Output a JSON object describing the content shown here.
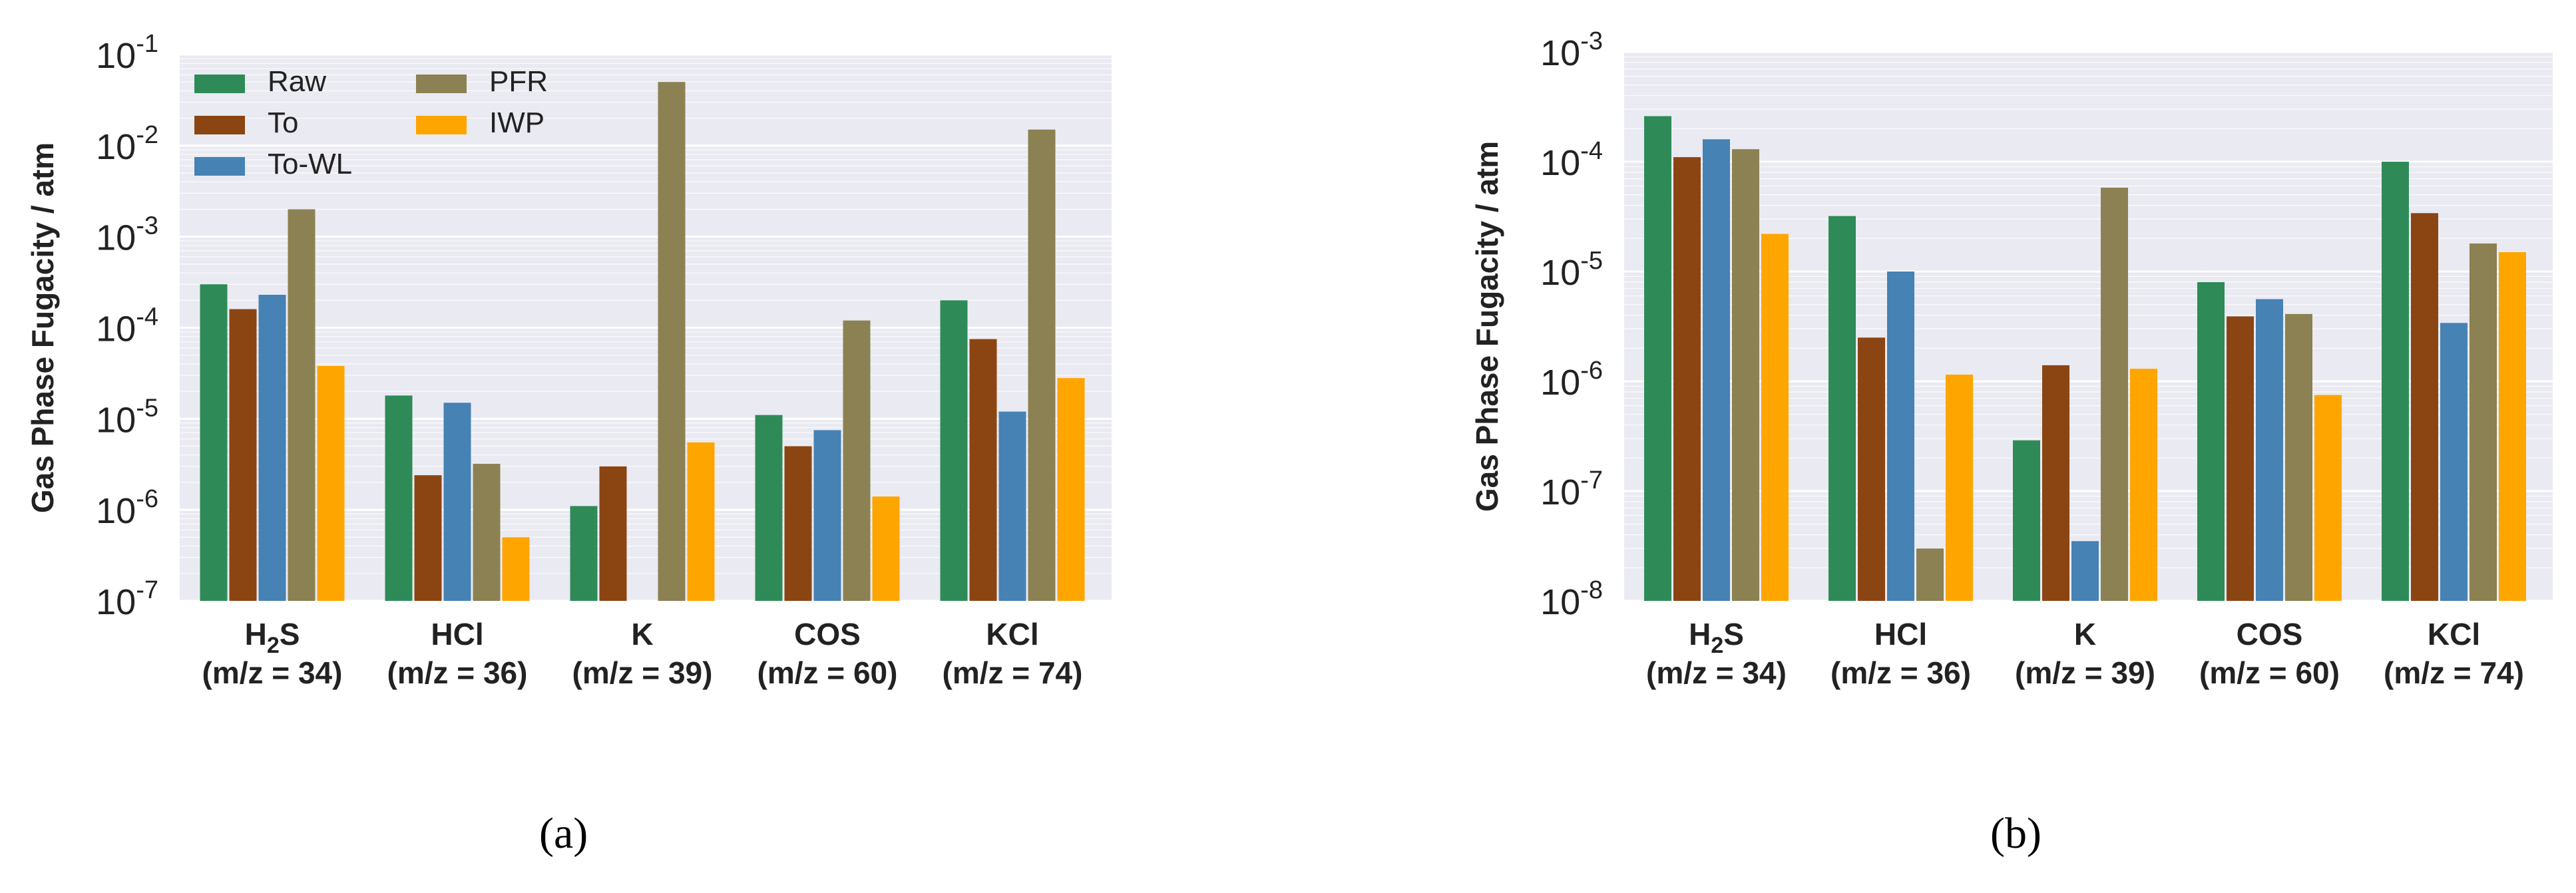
{
  "colors": {
    "Raw": "#2e8b57",
    "To": "#8b4513",
    "To-WL": "#4682b4",
    "PFR": "#8b8152",
    "IWP": "#ffa500",
    "plot_bg": "#eaeaf2",
    "grid": "#ffffff"
  },
  "captions": {
    "a": "(a)",
    "b": "(b)"
  },
  "chart_data": [
    {
      "type": "bar",
      "id": "a",
      "yscale": "log",
      "ylabel": "Gas Phase Fugacity / atm",
      "ylim": [
        1e-07,
        0.1
      ],
      "ytick_exponents": [
        "-7",
        "-6",
        "-5",
        "-4",
        "-3",
        "-2",
        "-1"
      ],
      "ytick_base": "10",
      "legend": {
        "position": "top-left",
        "columns": 2
      },
      "categories": [
        {
          "name_main": "H",
          "name_sub": "2",
          "name_rest": "S",
          "mz": "(m/z = 34)"
        },
        {
          "name_main": "HCl",
          "name_sub": "",
          "name_rest": "",
          "mz": "(m/z = 36)"
        },
        {
          "name_main": "K",
          "name_sub": "",
          "name_rest": "",
          "mz": "(m/z = 39)"
        },
        {
          "name_main": "COS",
          "name_sub": "",
          "name_rest": "",
          "mz": "(m/z = 60)"
        },
        {
          "name_main": "KCl",
          "name_sub": "",
          "name_rest": "",
          "mz": "(m/z = 74)"
        }
      ],
      "series": [
        {
          "name": "Raw",
          "values": [
            0.0003,
            1.8e-05,
            1.1e-06,
            1.1e-05,
            0.0002
          ]
        },
        {
          "name": "To",
          "values": [
            0.00016,
            2.4e-06,
            3e-06,
            5e-06,
            7.5e-05
          ]
        },
        {
          "name": "To-WL",
          "values": [
            0.00023,
            1.5e-05,
            null,
            7.5e-06,
            1.2e-05
          ]
        },
        {
          "name": "PFR",
          "values": [
            0.002,
            3.2e-06,
            0.05,
            0.00012,
            0.015
          ]
        },
        {
          "name": "IWP",
          "values": [
            3.8e-05,
            5e-07,
            5.5e-06,
            1.4e-06,
            2.8e-05
          ]
        }
      ]
    },
    {
      "type": "bar",
      "id": "b",
      "yscale": "log",
      "ylabel": "Gas Phase Fugacity / atm",
      "ylim": [
        1e-08,
        0.001
      ],
      "ytick_exponents": [
        "-8",
        "-7",
        "-6",
        "-5",
        "-4",
        "-3"
      ],
      "ytick_base": "10",
      "categories": [
        {
          "name_main": "H",
          "name_sub": "2",
          "name_rest": "S",
          "mz": "(m/z = 34)"
        },
        {
          "name_main": "HCl",
          "name_sub": "",
          "name_rest": "",
          "mz": "(m/z = 36)"
        },
        {
          "name_main": "K",
          "name_sub": "",
          "name_rest": "",
          "mz": "(m/z = 39)"
        },
        {
          "name_main": "COS",
          "name_sub": "",
          "name_rest": "",
          "mz": "(m/z = 60)"
        },
        {
          "name_main": "KCl",
          "name_sub": "",
          "name_rest": "",
          "mz": "(m/z = 74)"
        }
      ],
      "series": [
        {
          "name": "Raw",
          "values": [
            0.00026,
            3.2e-05,
            2.9e-07,
            8e-06,
            0.0001
          ]
        },
        {
          "name": "To",
          "values": [
            0.00011,
            2.5e-06,
            1.4e-06,
            3.9e-06,
            3.4e-05
          ]
        },
        {
          "name": "To-WL",
          "values": [
            0.00016,
            1e-05,
            3.5e-08,
            5.6e-06,
            3.4e-06
          ]
        },
        {
          "name": "PFR",
          "values": [
            0.00013,
            3e-08,
            5.8e-05,
            4.1e-06,
            1.8e-05
          ]
        },
        {
          "name": "IWP",
          "values": [
            2.2e-05,
            1.15e-06,
            1.3e-06,
            7.5e-07,
            1.5e-05
          ]
        }
      ]
    }
  ]
}
